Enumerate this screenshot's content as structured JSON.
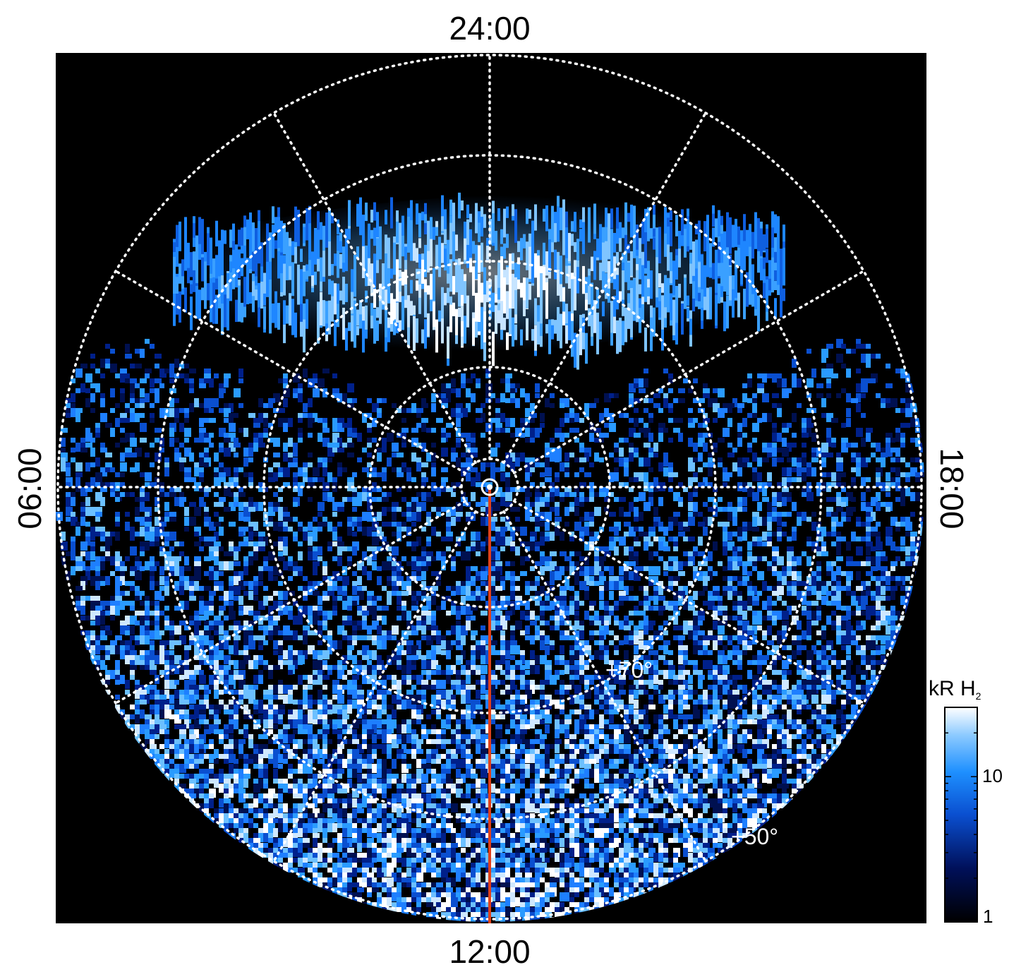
{
  "labels": {
    "top": "24:00",
    "bottom": "12:00",
    "left": "06:00",
    "right": "18:00",
    "lat_70": "+70°",
    "lat_50": "+50°"
  },
  "colorbar": {
    "unit": "kR H",
    "unit_sub": "2",
    "tick_10": "10",
    "tick_1": "1",
    "scale": "log",
    "range": [
      1,
      30
    ]
  },
  "colors": {
    "background": "#000000",
    "grid": "#ffffff",
    "meridian_line": "#e0401a",
    "aurora_bright": "#e6f2ff",
    "aurora_mid": "#1e8fff",
    "aurora_dark": "#001060"
  }
}
